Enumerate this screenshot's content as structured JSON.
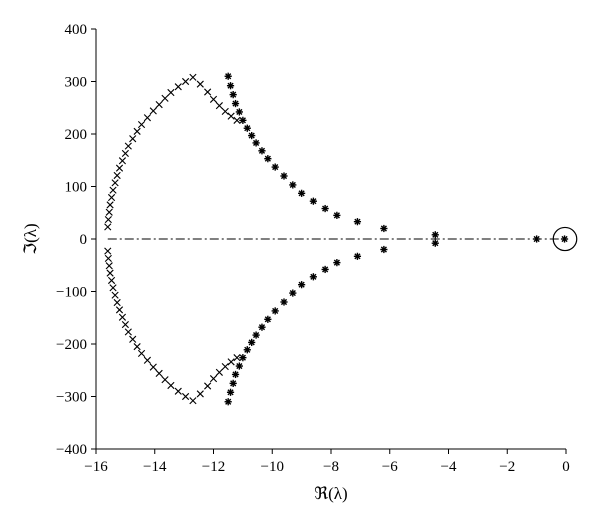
{
  "chart_data": {
    "type": "scatter",
    "xlabel": "ℜ(λ)",
    "ylabel": "ℑ(λ)",
    "xlim": [
      -16,
      0
    ],
    "ylim": [
      -400,
      400
    ],
    "x_ticks": [
      -16,
      -14,
      -12,
      -10,
      -8,
      -6,
      -4,
      -2,
      0
    ],
    "y_ticks": [
      -400,
      -300,
      -200,
      -100,
      0,
      100,
      200,
      300,
      400
    ],
    "x_tick_labels": [
      "−16",
      "−14",
      "−12",
      "−10",
      "−8",
      "−6",
      "−4",
      "−2",
      "0"
    ],
    "y_tick_labels": [
      "−400",
      "−300",
      "−200",
      "−100",
      "0",
      "100",
      "200",
      "300",
      "400"
    ],
    "grid": false,
    "reference_line": {
      "y": 0,
      "x_range": [
        -15.6,
        0
      ],
      "style": "dash-dot"
    },
    "highlight_circle": {
      "center": [
        0,
        0
      ],
      "rx": 0.4,
      "ry": 22
    },
    "series": [
      {
        "marker": "x",
        "points": [
          [
            -12.7,
            308
          ],
          [
            -12.95,
            300
          ],
          [
            -13.2,
            290
          ],
          [
            -13.45,
            279
          ],
          [
            -13.65,
            268
          ],
          [
            -13.85,
            256
          ],
          [
            -14.05,
            244
          ],
          [
            -14.25,
            231
          ],
          [
            -14.45,
            218
          ],
          [
            -14.6,
            205
          ],
          [
            -14.75,
            191
          ],
          [
            -14.9,
            177
          ],
          [
            -15.0,
            163
          ],
          [
            -15.1,
            149
          ],
          [
            -15.2,
            135
          ],
          [
            -15.28,
            121
          ],
          [
            -15.35,
            107
          ],
          [
            -15.42,
            93
          ],
          [
            -15.47,
            79
          ],
          [
            -15.52,
            65
          ],
          [
            -15.55,
            51
          ],
          [
            -15.58,
            37
          ],
          [
            -15.6,
            23
          ],
          [
            -12.7,
            -308
          ],
          [
            -12.95,
            -300
          ],
          [
            -13.2,
            -290
          ],
          [
            -13.45,
            -279
          ],
          [
            -13.65,
            -268
          ],
          [
            -13.85,
            -256
          ],
          [
            -14.05,
            -244
          ],
          [
            -14.25,
            -231
          ],
          [
            -14.45,
            -218
          ],
          [
            -14.6,
            -205
          ],
          [
            -14.75,
            -191
          ],
          [
            -14.9,
            -177
          ],
          [
            -15.0,
            -163
          ],
          [
            -15.1,
            -149
          ],
          [
            -15.2,
            -135
          ],
          [
            -15.28,
            -121
          ],
          [
            -15.35,
            -107
          ],
          [
            -15.42,
            -93
          ],
          [
            -15.47,
            -79
          ],
          [
            -15.52,
            -65
          ],
          [
            -15.55,
            -51
          ],
          [
            -15.58,
            -37
          ],
          [
            -15.6,
            -23
          ],
          [
            -12.45,
            295
          ],
          [
            -12.2,
            280
          ],
          [
            -12.0,
            266
          ],
          [
            -11.8,
            254
          ],
          [
            -11.6,
            243
          ],
          [
            -11.4,
            234
          ],
          [
            -11.2,
            226
          ],
          [
            -12.45,
            -295
          ],
          [
            -12.2,
            -280
          ],
          [
            -12.0,
            -266
          ],
          [
            -11.8,
            -254
          ],
          [
            -11.6,
            -243
          ],
          [
            -11.4,
            -234
          ],
          [
            -11.2,
            -226
          ]
        ]
      },
      {
        "marker": "asterisk",
        "points": [
          [
            -11.5,
            310
          ],
          [
            -11.42,
            292
          ],
          [
            -11.33,
            275
          ],
          [
            -11.25,
            258
          ],
          [
            -11.12,
            242
          ],
          [
            -11.0,
            226
          ],
          [
            -10.85,
            211
          ],
          [
            -10.7,
            197
          ],
          [
            -10.55,
            183
          ],
          [
            -10.35,
            168
          ],
          [
            -10.15,
            153
          ],
          [
            -9.9,
            137
          ],
          [
            -9.6,
            120
          ],
          [
            -9.3,
            103
          ],
          [
            -9.0,
            87
          ],
          [
            -8.6,
            72
          ],
          [
            -8.2,
            58
          ],
          [
            -7.8,
            45
          ],
          [
            -7.1,
            33
          ],
          [
            -6.2,
            20
          ],
          [
            -4.45,
            8
          ],
          [
            -11.5,
            -310
          ],
          [
            -11.42,
            -292
          ],
          [
            -11.33,
            -275
          ],
          [
            -11.25,
            -258
          ],
          [
            -11.12,
            -242
          ],
          [
            -11.0,
            -226
          ],
          [
            -10.85,
            -211
          ],
          [
            -10.7,
            -197
          ],
          [
            -10.55,
            -183
          ],
          [
            -10.35,
            -168
          ],
          [
            -10.15,
            -153
          ],
          [
            -9.9,
            -137
          ],
          [
            -9.6,
            -120
          ],
          [
            -9.3,
            -103
          ],
          [
            -9.0,
            -87
          ],
          [
            -8.6,
            -72
          ],
          [
            -8.2,
            -58
          ],
          [
            -7.8,
            -45
          ],
          [
            -7.1,
            -33
          ],
          [
            -6.2,
            -20
          ],
          [
            -4.45,
            -8
          ],
          [
            -1.0,
            0
          ],
          [
            -0.05,
            0
          ]
        ]
      }
    ]
  }
}
